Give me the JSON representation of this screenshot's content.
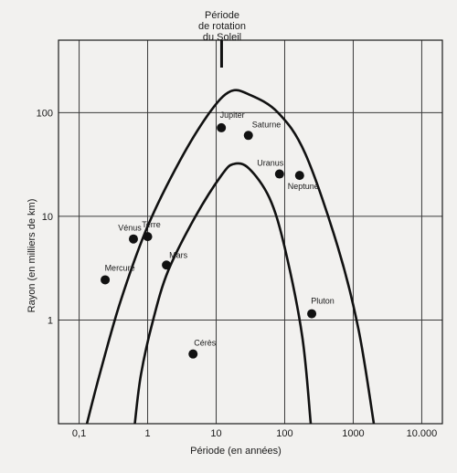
{
  "chart_data": {
    "type": "scatter",
    "title_lines": [
      "Période",
      "de rotation",
      "du Soleil"
    ],
    "xlabel": "Période (en années)",
    "ylabel": "Rayon (en milliers de km)",
    "x_scale": "log",
    "y_scale": "log",
    "xlim": [
      0.05,
      20000
    ],
    "ylim": [
      0.1,
      500
    ],
    "x_ticks": [
      {
        "value": 0.1,
        "label": "0,1"
      },
      {
        "value": 1,
        "label": "1"
      },
      {
        "value": 10,
        "label": "10"
      },
      {
        "value": 100,
        "label": "100"
      },
      {
        "value": 1000,
        "label": "1000"
      },
      {
        "value": 10000,
        "label": "10.000"
      }
    ],
    "y_ticks": [
      {
        "value": 1,
        "label": "1"
      },
      {
        "value": 10,
        "label": "10"
      },
      {
        "value": 100,
        "label": "100"
      }
    ],
    "x_grid": [
      0.1,
      1,
      10,
      100,
      1000,
      10000
    ],
    "y_grid": [
      1,
      10,
      100
    ],
    "grid": true,
    "solar_rotation_period": 12,
    "points": [
      {
        "label": "Mercure",
        "x": 0.24,
        "y": 2.44
      },
      {
        "label": "Vénus",
        "x": 0.62,
        "y": 6.05
      },
      {
        "label": "Terre",
        "x": 1.0,
        "y": 6.37
      },
      {
        "label": "Mars",
        "x": 1.88,
        "y": 3.39
      },
      {
        "label": "Cérès",
        "x": 4.6,
        "y": 0.47
      },
      {
        "label": "Jupiter",
        "x": 11.9,
        "y": 71.5
      },
      {
        "label": "Saturne",
        "x": 29.5,
        "y": 60.3
      },
      {
        "label": "Uranus",
        "x": 84,
        "y": 25.6
      },
      {
        "label": "Neptune",
        "x": 165,
        "y": 24.8
      },
      {
        "label": "Pluton",
        "x": 248,
        "y": 1.15
      }
    ],
    "envelope_curves": [
      {
        "name": "outer",
        "x": [
          0.13,
          0.2,
          0.4,
          1,
          3,
          8,
          16,
          30,
          80,
          200,
          600,
          1200,
          2000
        ],
        "y": [
          0.1,
          0.3,
          1.5,
          8,
          35,
          100,
          160,
          150,
          100,
          40,
          5,
          0.8,
          0.1
        ]
      },
      {
        "name": "inner",
        "x": [
          0.65,
          0.8,
          1.2,
          2,
          5,
          12,
          18,
          30,
          60,
          100,
          180,
          240
        ],
        "y": [
          0.1,
          0.3,
          1,
          3,
          10,
          25,
          32,
          29,
          15,
          5,
          0.7,
          0.1
        ]
      }
    ]
  }
}
